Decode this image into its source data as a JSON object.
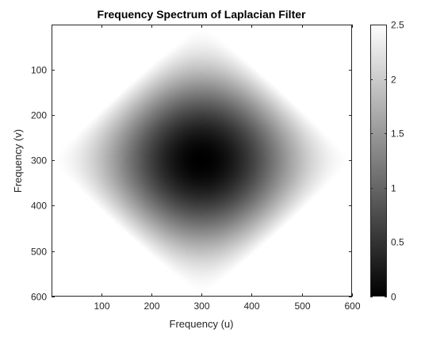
{
  "chart_data": {
    "type": "heatmap",
    "title": "Frequency Spectrum of Laplacian Filter",
    "xlabel": "Frequency (u)",
    "ylabel": "Frequency (v)",
    "colormap": "gray",
    "xlim": [
      1,
      600
    ],
    "ylim": [
      1,
      600
    ],
    "y_direction": "reverse",
    "x_ticks": [
      100,
      200,
      300,
      400,
      500,
      600
    ],
    "y_ticks": [
      100,
      200,
      300,
      400,
      500,
      600
    ],
    "center": [
      300,
      300
    ],
    "center_value": 0,
    "peak_value": 2.5,
    "colorbar": {
      "clim": [
        0,
        2.5
      ],
      "ticks": [
        0,
        0.5,
        1,
        1.5,
        2,
        2.5
      ],
      "tick_labels": [
        "0",
        "0.5",
        "1",
        "1.5",
        "2",
        "2.5"
      ],
      "location": "right"
    }
  }
}
